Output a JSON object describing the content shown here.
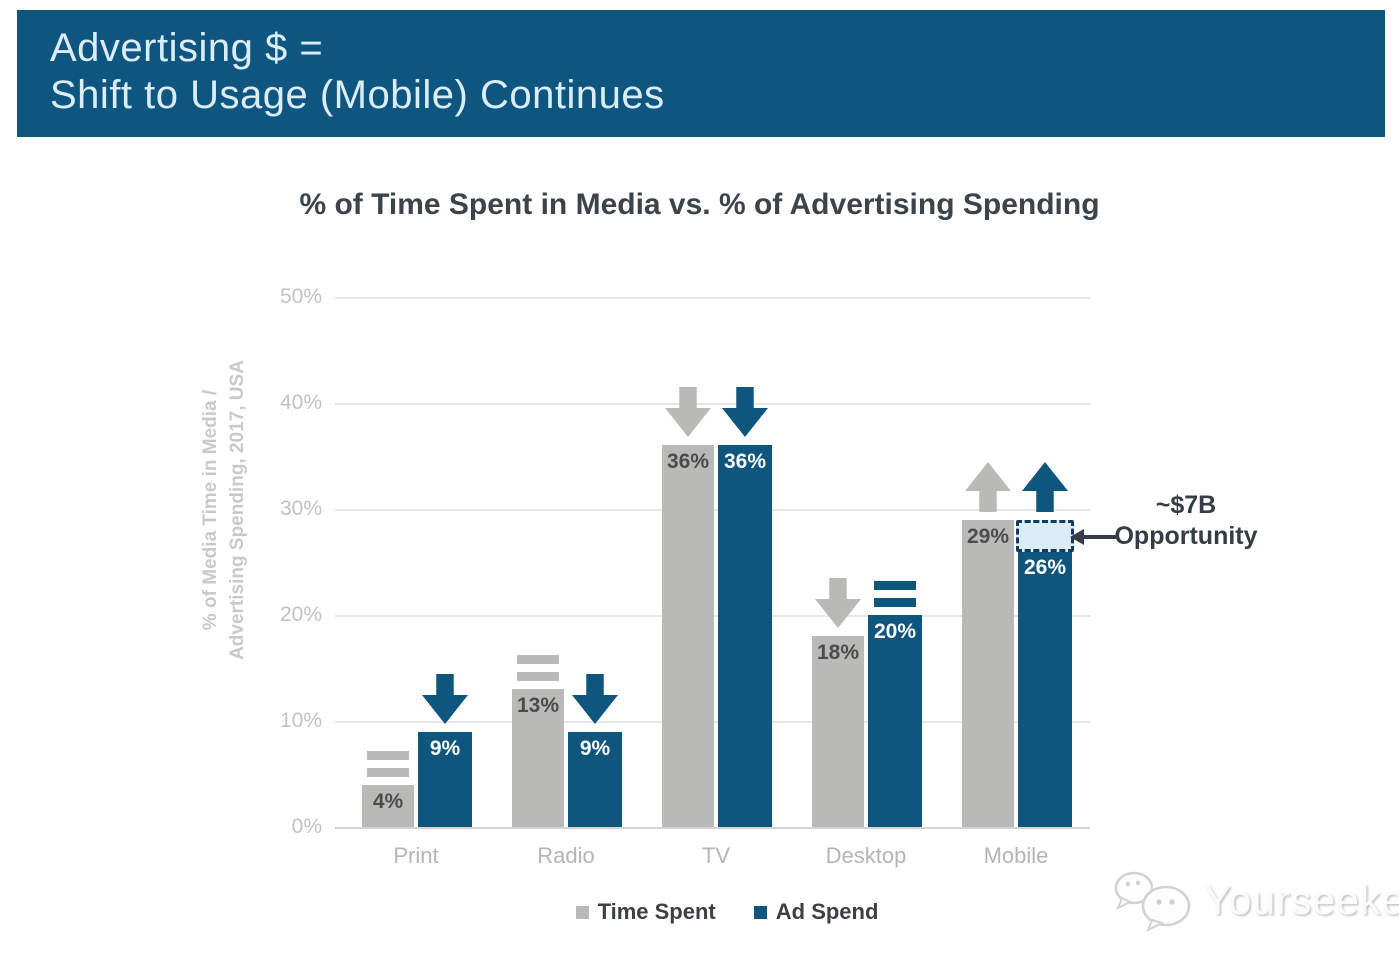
{
  "banner": {
    "line1": "Advertising $ =",
    "line2": "Shift to Usage (Mobile) Continues",
    "bg_color": "#0e567f",
    "text_color": "#d9edfb"
  },
  "chart_data": {
    "type": "bar",
    "title": "% of Time Spent in Media vs. % of Advertising Spending",
    "ylabel_line1": "% of Media Time in Media /",
    "ylabel_line2": "Advertising Spending, 2017, USA",
    "categories": [
      "Print",
      "Radio",
      "TV",
      "Desktop",
      "Mobile"
    ],
    "series": [
      {
        "name": "Time Spent",
        "color": "#b9b9b8",
        "label_color": "#4c4c4c",
        "values": [
          4,
          13,
          36,
          18,
          29
        ],
        "value_labels": [
          "4%",
          "13%",
          "36%",
          "18%",
          "29%"
        ],
        "trend_indicators": [
          "equal",
          "equal",
          "down",
          "down",
          "up"
        ]
      },
      {
        "name": "Ad Spend",
        "color": "#0f567e",
        "label_color": "#ffffff",
        "values": [
          9,
          9,
          36,
          20,
          26
        ],
        "value_labels": [
          "9%",
          "9%",
          "36%",
          "20%",
          "26%"
        ],
        "trend_indicators": [
          "down",
          "down",
          "down",
          "equal",
          "up"
        ]
      }
    ],
    "ylim": [
      0,
      50
    ],
    "yticks": [
      "0%",
      "10%",
      "20%",
      "30%",
      "40%",
      "50%"
    ],
    "grid": true,
    "legend_position": "bottom",
    "annotation": {
      "line1": "~$7B",
      "line2": "Opportunity",
      "target_category": "Mobile",
      "target_series": "Ad Spend",
      "box_from": 26,
      "box_to": 29,
      "box_fill": "#d9ecf8",
      "box_border": "#16395f"
    }
  },
  "watermark": {
    "text": "Yourseeker"
  }
}
